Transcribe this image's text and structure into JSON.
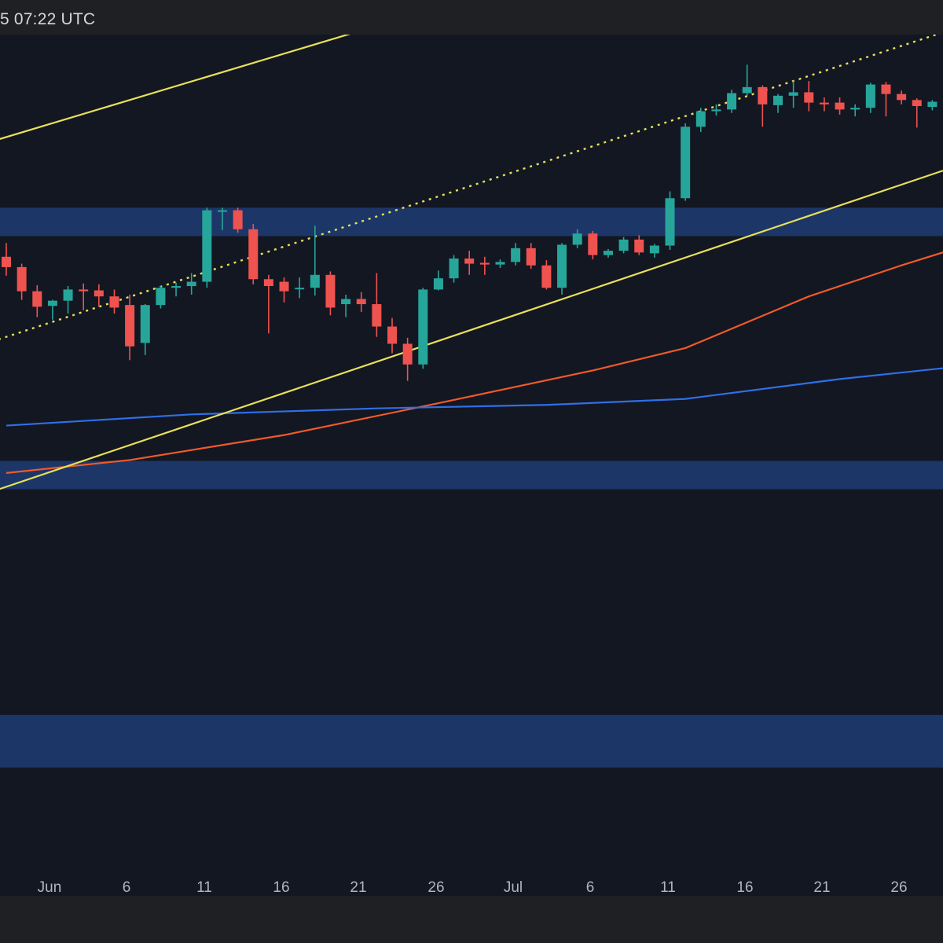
{
  "header": {
    "timestamp": "5 07:22 UTC"
  },
  "colors": {
    "background": "#131722",
    "zone": "#1f3a70",
    "channel": "#e8e05a",
    "ema_fast": "#f05a28",
    "ema_slow": "#2f6fe8",
    "up": "#26a69a",
    "down": "#ef5350",
    "axis_text": "#b2b5be"
  },
  "chart_data": {
    "type": "candlestick",
    "title": "",
    "xlabel": "",
    "ylabel": "",
    "x_ticks": [
      "Jun",
      "6",
      "11",
      "16",
      "21",
      "26",
      "Jul",
      "6",
      "11",
      "16",
      "21",
      "26"
    ],
    "ylim": [
      0,
      100
    ],
    "candles": [
      {
        "date": "May 27",
        "open": 74.2,
        "high": 75.8,
        "low": 72.0,
        "close": 73.0
      },
      {
        "date": "May 28",
        "open": 73.0,
        "high": 73.4,
        "low": 69.2,
        "close": 70.2
      },
      {
        "date": "May 29",
        "open": 70.2,
        "high": 70.9,
        "low": 67.2,
        "close": 68.4
      },
      {
        "date": "May 30",
        "open": 68.5,
        "high": 69.2,
        "low": 66.9,
        "close": 69.1
      },
      {
        "date": "May 31",
        "open": 69.1,
        "high": 70.8,
        "low": 67.6,
        "close": 70.4
      },
      {
        "date": "Jun 1",
        "open": 70.4,
        "high": 71.1,
        "low": 68.0,
        "close": 70.2
      },
      {
        "date": "Jun 2",
        "open": 70.3,
        "high": 71.0,
        "low": 68.4,
        "close": 69.6
      },
      {
        "date": "Jun 3",
        "open": 69.6,
        "high": 70.4,
        "low": 67.6,
        "close": 68.3
      },
      {
        "date": "Jun 4",
        "open": 68.6,
        "high": 69.8,
        "low": 62.2,
        "close": 63.8
      },
      {
        "date": "Jun 5",
        "open": 64.2,
        "high": 68.7,
        "low": 62.8,
        "close": 68.6
      },
      {
        "date": "Jun 6",
        "open": 68.6,
        "high": 70.8,
        "low": 68.2,
        "close": 70.6
      },
      {
        "date": "Jun 7",
        "open": 70.6,
        "high": 71.2,
        "low": 69.6,
        "close": 70.8
      },
      {
        "date": "Jun 8",
        "open": 70.8,
        "high": 72.3,
        "low": 69.8,
        "close": 71.3
      },
      {
        "date": "Jun 9",
        "open": 71.3,
        "high": 79.9,
        "low": 70.6,
        "close": 79.6
      },
      {
        "date": "Jun 10",
        "open": 79.6,
        "high": 79.9,
        "low": 77.3,
        "close": 79.6
      },
      {
        "date": "Jun 11",
        "open": 79.6,
        "high": 79.9,
        "low": 77.0,
        "close": 77.4
      },
      {
        "date": "Jun 12",
        "open": 77.4,
        "high": 78.0,
        "low": 71.0,
        "close": 71.6
      },
      {
        "date": "Jun 13",
        "open": 71.6,
        "high": 72.1,
        "low": 65.3,
        "close": 70.8
      },
      {
        "date": "Jun 14",
        "open": 71.3,
        "high": 71.8,
        "low": 68.9,
        "close": 70.2
      },
      {
        "date": "Jun 15",
        "open": 70.6,
        "high": 71.8,
        "low": 69.4,
        "close": 70.6
      },
      {
        "date": "Jun 16",
        "open": 70.6,
        "high": 77.8,
        "low": 69.7,
        "close": 72.1
      },
      {
        "date": "Jun 17",
        "open": 72.1,
        "high": 72.5,
        "low": 67.4,
        "close": 68.3
      },
      {
        "date": "Jun 18",
        "open": 68.7,
        "high": 69.8,
        "low": 67.2,
        "close": 69.3
      },
      {
        "date": "Jun 19",
        "open": 69.3,
        "high": 70.1,
        "low": 67.8,
        "close": 68.7
      },
      {
        "date": "Jun 20",
        "open": 68.7,
        "high": 72.3,
        "low": 64.9,
        "close": 66.1
      },
      {
        "date": "Jun 21",
        "open": 66.1,
        "high": 67.1,
        "low": 63.0,
        "close": 64.1
      },
      {
        "date": "Jun 22",
        "open": 64.1,
        "high": 64.8,
        "low": 59.8,
        "close": 61.7
      },
      {
        "date": "Jun 23",
        "open": 61.7,
        "high": 70.6,
        "low": 61.2,
        "close": 70.4
      },
      {
        "date": "Jun 24",
        "open": 70.4,
        "high": 72.6,
        "low": 70.3,
        "close": 71.7
      },
      {
        "date": "Jun 25",
        "open": 71.7,
        "high": 74.4,
        "low": 71.2,
        "close": 74.0
      },
      {
        "date": "Jun 26",
        "open": 74.0,
        "high": 74.9,
        "low": 72.1,
        "close": 73.4
      },
      {
        "date": "Jun 27",
        "open": 73.5,
        "high": 74.2,
        "low": 72.1,
        "close": 73.3
      },
      {
        "date": "Jun 28",
        "open": 73.3,
        "high": 73.9,
        "low": 72.9,
        "close": 73.6
      },
      {
        "date": "Jun 29",
        "open": 73.6,
        "high": 75.8,
        "low": 73.2,
        "close": 75.2
      },
      {
        "date": "Jun 30",
        "open": 75.2,
        "high": 75.8,
        "low": 72.8,
        "close": 73.2
      },
      {
        "date": "Jul 1",
        "open": 73.2,
        "high": 73.8,
        "low": 70.4,
        "close": 70.6
      },
      {
        "date": "Jul 2",
        "open": 70.6,
        "high": 75.8,
        "low": 69.8,
        "close": 75.6
      },
      {
        "date": "Jul 3",
        "open": 75.6,
        "high": 77.4,
        "low": 75.2,
        "close": 76.9
      },
      {
        "date": "Jul 4",
        "open": 76.9,
        "high": 77.2,
        "low": 73.9,
        "close": 74.4
      },
      {
        "date": "Jul 5",
        "open": 74.4,
        "high": 75.1,
        "low": 74.1,
        "close": 74.9
      },
      {
        "date": "Jul 6",
        "open": 74.9,
        "high": 76.5,
        "low": 74.6,
        "close": 76.2
      },
      {
        "date": "Jul 7",
        "open": 76.2,
        "high": 76.7,
        "low": 74.4,
        "close": 74.7
      },
      {
        "date": "Jul 8",
        "open": 74.6,
        "high": 75.7,
        "low": 74.1,
        "close": 75.5
      },
      {
        "date": "Jul 9",
        "open": 75.5,
        "high": 81.8,
        "low": 75.0,
        "close": 81.0
      },
      {
        "date": "Jul 10",
        "open": 81.0,
        "high": 89.7,
        "low": 80.7,
        "close": 89.3
      },
      {
        "date": "Jul 11",
        "open": 89.3,
        "high": 91.5,
        "low": 88.7,
        "close": 91.1
      },
      {
        "date": "Jul 12",
        "open": 91.1,
        "high": 91.9,
        "low": 90.6,
        "close": 91.3
      },
      {
        "date": "Jul 13",
        "open": 91.3,
        "high": 93.6,
        "low": 90.9,
        "close": 93.2
      },
      {
        "date": "Jul 14",
        "open": 93.2,
        "high": 96.5,
        "low": 92.9,
        "close": 93.9
      },
      {
        "date": "Jul 15",
        "open": 93.9,
        "high": 94.1,
        "low": 89.3,
        "close": 91.9
      },
      {
        "date": "Jul 16",
        "open": 91.8,
        "high": 93.1,
        "low": 90.9,
        "close": 92.9
      },
      {
        "date": "Jul 17",
        "open": 92.9,
        "high": 94.6,
        "low": 91.5,
        "close": 93.3
      },
      {
        "date": "Jul 18",
        "open": 93.3,
        "high": 94.6,
        "low": 91.1,
        "close": 92.1
      },
      {
        "date": "Jul 19",
        "open": 92.1,
        "high": 92.7,
        "low": 91.1,
        "close": 91.9
      },
      {
        "date": "Jul 20",
        "open": 92.1,
        "high": 92.7,
        "low": 90.7,
        "close": 91.3
      },
      {
        "date": "Jul 21",
        "open": 91.3,
        "high": 91.9,
        "low": 90.5,
        "close": 91.5
      },
      {
        "date": "Jul 22",
        "open": 91.5,
        "high": 94.4,
        "low": 90.9,
        "close": 94.2
      },
      {
        "date": "Jul 23",
        "open": 94.2,
        "high": 94.5,
        "low": 90.5,
        "close": 93.1
      },
      {
        "date": "Jul 24",
        "open": 93.1,
        "high": 93.5,
        "low": 91.9,
        "close": 92.4
      },
      {
        "date": "Jul 25",
        "open": 92.4,
        "high": 92.6,
        "low": 89.2,
        "close": 91.7
      },
      {
        "date": "Jul 26",
        "open": 91.6,
        "high": 92.4,
        "low": 91.2,
        "close": 92.2
      },
      {
        "date": "Jul 27",
        "open": 92.2,
        "high": 93.7,
        "low": 92.0,
        "close": 93.6
      },
      {
        "date": "Jul 28",
        "open": 93.6,
        "high": 93.7,
        "low": 91.5,
        "close": 92.1
      },
      {
        "date": "Jul 29",
        "open": 92.1,
        "high": 92.8,
        "low": 91.1,
        "close": 92.1
      }
    ],
    "zones": [
      {
        "from": 76.6,
        "to": 79.9
      },
      {
        "from": 47.2,
        "to": 50.5
      },
      {
        "from": 14.9,
        "to": 21.0
      }
    ],
    "channel_lines": [
      {
        "style": "solid",
        "points": [
          [
            "May 27",
            88.1
          ],
          [
            "Jul 8",
            110.7
          ]
        ]
      },
      {
        "style": "dotted",
        "points": [
          [
            "May 27",
            64.9
          ],
          [
            "Jul 29",
            101.6
          ]
        ]
      },
      {
        "style": "solid",
        "points": [
          [
            "May 27",
            47.5
          ],
          [
            "Jul 29",
            85.6
          ]
        ]
      }
    ],
    "moving_averages": [
      {
        "color_key": "ema_fast",
        "points": [
          [
            "May 27",
            49.1
          ],
          [
            "Jun 4",
            50.6
          ],
          [
            "Jun 14",
            53.5
          ],
          [
            "Jun 24",
            57.2
          ],
          [
            "Jul 4",
            61.0
          ],
          [
            "Jul 10",
            63.6
          ],
          [
            "Jul 18",
            69.6
          ],
          [
            "Jul 24",
            73.2
          ],
          [
            "Jul 29",
            76.0
          ]
        ]
      },
      {
        "color_key": "ema_slow",
        "points": [
          [
            "May 27",
            54.6
          ],
          [
            "Jun 8",
            55.9
          ],
          [
            "Jun 20",
            56.6
          ],
          [
            "Jul 1",
            57.0
          ],
          [
            "Jul 10",
            57.7
          ],
          [
            "Jul 20",
            60.0
          ],
          [
            "Jul 29",
            61.7
          ]
        ]
      }
    ]
  }
}
